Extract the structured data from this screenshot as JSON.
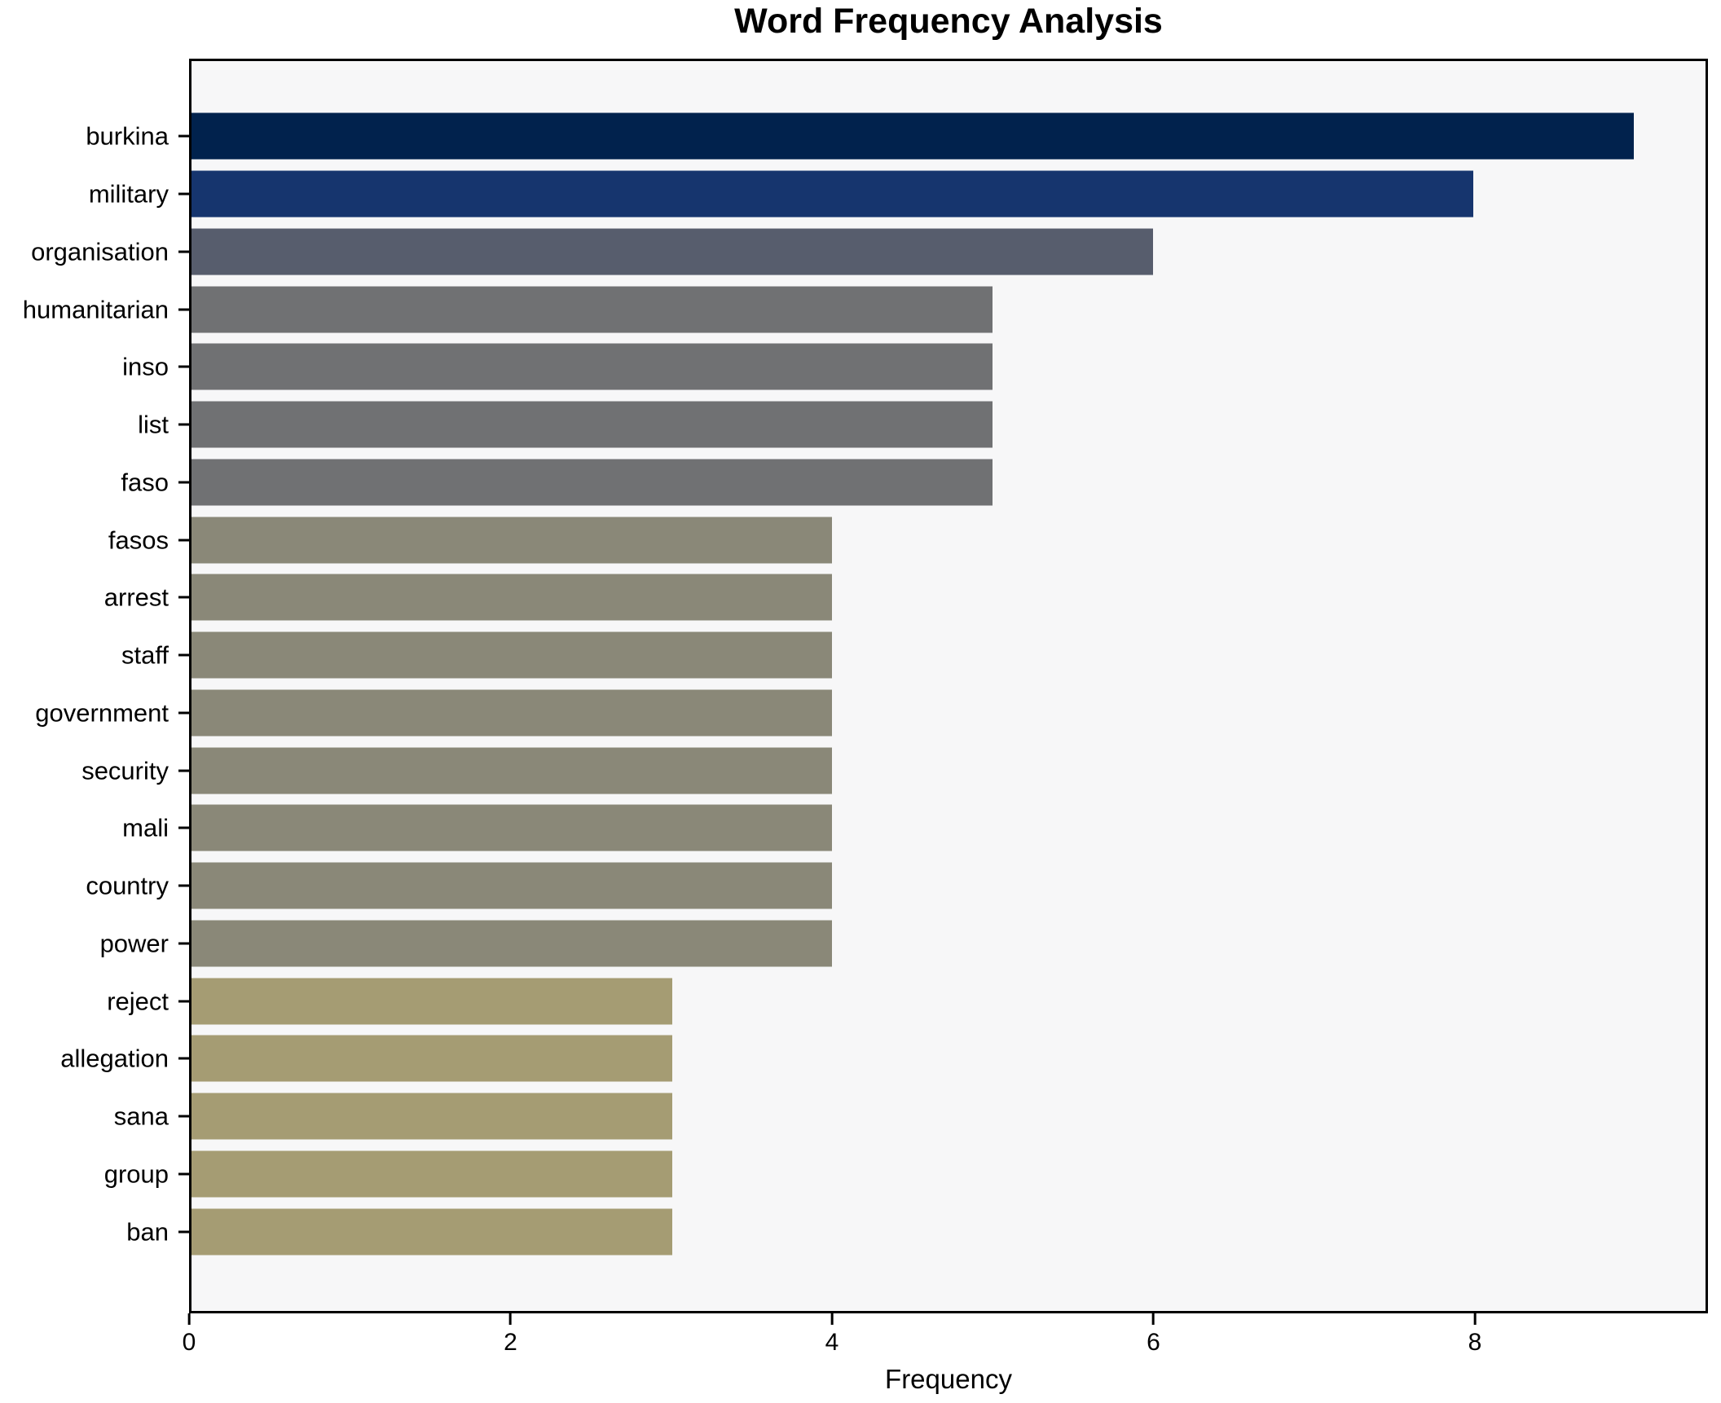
{
  "chart_data": {
    "type": "bar",
    "orientation": "horizontal",
    "title": "Word Frequency Analysis",
    "xlabel": "Frequency",
    "ylabel": "",
    "xlim": [
      0,
      9.45
    ],
    "x_ticks": [
      0,
      2,
      4,
      6,
      8
    ],
    "grid": false,
    "legend": false,
    "categories": [
      "burkina",
      "military",
      "organisation",
      "humanitarian",
      "inso",
      "list",
      "faso",
      "fasos",
      "arrest",
      "staff",
      "government",
      "security",
      "mali",
      "country",
      "power",
      "reject",
      "allegation",
      "sana",
      "group",
      "ban"
    ],
    "values": [
      9,
      8,
      6,
      5,
      5,
      5,
      5,
      4,
      4,
      4,
      4,
      4,
      4,
      4,
      4,
      3,
      3,
      3,
      3,
      3
    ],
    "bar_colors": [
      "#01224d",
      "#16356e",
      "#575d6d",
      "#707173",
      "#707173",
      "#707173",
      "#707173",
      "#8a8878",
      "#8a8878",
      "#8a8878",
      "#8a8878",
      "#8a8878",
      "#8a8878",
      "#8a8878",
      "#8a8878",
      "#a59c73",
      "#a59c73",
      "#a59c73",
      "#a59c73",
      "#a59c73"
    ]
  },
  "colors": {
    "figure_bg": "#ffffff",
    "plot_bg": "#f7f7f8",
    "spine": "#000000",
    "text": "#000000"
  }
}
